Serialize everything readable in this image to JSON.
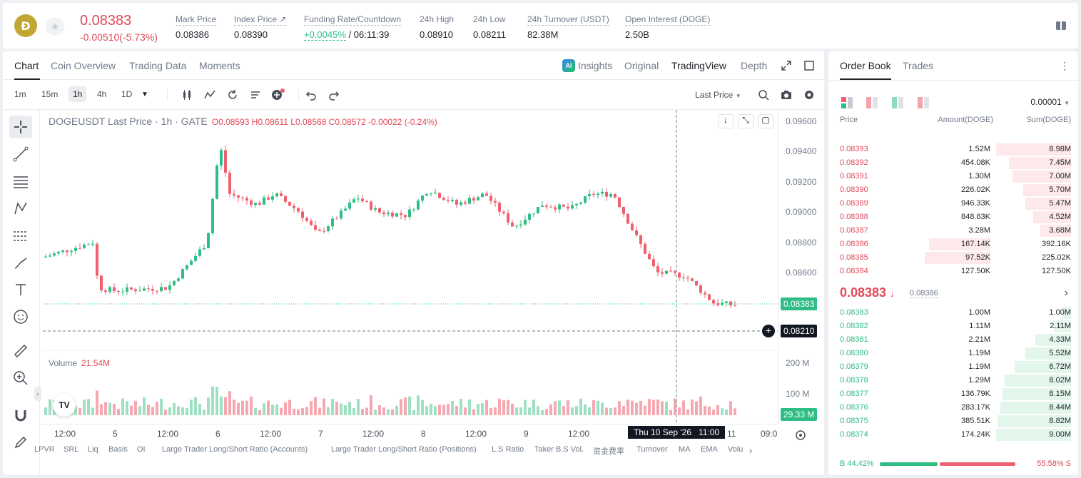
{
  "header": {
    "coin_glyph": "Ð",
    "last_price": "0.08383",
    "change": "-0.00510(-5.73%)",
    "stats": [
      {
        "label": "Mark Price",
        "value": "0.08386"
      },
      {
        "label": "Index Price ↗",
        "value": "0.08390"
      },
      {
        "label": "Funding Rate/Countdown",
        "value": "+0.0045%",
        "value2": "/ 06:11:39"
      },
      {
        "label": "24h High",
        "value": "0.08910"
      },
      {
        "label": "24h Low",
        "value": "0.08211"
      },
      {
        "label": "24h Turnover (USDT)",
        "value": "82.38M"
      },
      {
        "label": "Open Interest (DOGE)",
        "value": "2.50B"
      }
    ]
  },
  "chart_tabs": [
    "Chart",
    "Coin Overview",
    "Trading Data",
    "Moments"
  ],
  "view_tabs": {
    "insights": "Insights",
    "original": "Original",
    "tradingview": "TradingView",
    "depth": "Depth"
  },
  "timeframes": [
    "1m",
    "15m",
    "1h",
    "4h",
    "1D"
  ],
  "active_timeframe": "1h",
  "price_source": "Last Price",
  "symbol_line": {
    "title": "DOGEUSDT Last Price · 1h · GATE",
    "ohlc": "O0.08593 H0.08611 L0.08568 C0.08572 -0.00022 (-0.24%)"
  },
  "volume_line": {
    "label": "Volume",
    "value": "21.54M"
  },
  "y_axis": [
    "0.09600",
    "0.09400",
    "0.09200",
    "0.09000",
    "0.08800",
    "0.08600"
  ],
  "current_price_badge": "0.08383",
  "crosshair_price_badge": "0.08210",
  "volume_axis": [
    "200 M",
    "100 M"
  ],
  "volume_badge": "29.33 M",
  "x_axis": [
    "12:00",
    "5",
    "12:00",
    "6",
    "12:00",
    "7",
    "12:00",
    "8",
    "12:00",
    "9",
    "12:00",
    "11",
    "09:0"
  ],
  "crosshair_date": "Thu 10 Sep '26",
  "crosshair_time": "11:00",
  "tv_logo": "TV",
  "indicators": [
    "LPVR",
    "SRL",
    "Liq",
    "Basis",
    "OI",
    "Large Trader Long/Short Ratio (Accounts)",
    "Large Trader Long/Short Ratio (Positions)",
    "L.S Ratio",
    "Taker B.S Vol.",
    "资金费率",
    "Turnover",
    "MA",
    "EMA",
    "Volu"
  ],
  "order_book": {
    "tabs": [
      "Order Book",
      "Trades"
    ],
    "precision": "0.00001",
    "headers": [
      "Price",
      "Amount(DOGE)",
      "Sum(DOGE)"
    ],
    "asks": [
      {
        "price": "0.08393",
        "amount": "1.52M",
        "sum": "8.98M",
        "depth": 1.0,
        "amt_depth": 0
      },
      {
        "price": "0.08392",
        "amount": "454.08K",
        "sum": "7.45M",
        "depth": 0.83,
        "amt_depth": 0
      },
      {
        "price": "0.08391",
        "amount": "1.30M",
        "sum": "7.00M",
        "depth": 0.78,
        "amt_depth": 0
      },
      {
        "price": "0.08390",
        "amount": "226.02K",
        "sum": "5.70M",
        "depth": 0.64,
        "amt_depth": 0
      },
      {
        "price": "0.08389",
        "amount": "946.33K",
        "sum": "5.47M",
        "depth": 0.61,
        "amt_depth": 0
      },
      {
        "price": "0.08388",
        "amount": "848.63K",
        "sum": "4.52M",
        "depth": 0.5,
        "amt_depth": 0
      },
      {
        "price": "0.08387",
        "amount": "3.28M",
        "sum": "3.68M",
        "depth": 0.41,
        "amt_depth": 0
      },
      {
        "price": "0.08386",
        "amount": "167.14K",
        "sum": "392.16K",
        "depth": 0,
        "amt_depth": 0.86
      },
      {
        "price": "0.08385",
        "amount": "97.52K",
        "sum": "225.02K",
        "depth": 0,
        "amt_depth": 0.92
      },
      {
        "price": "0.08384",
        "amount": "127.50K",
        "sum": "127.50K",
        "depth": 0,
        "amt_depth": 0
      }
    ],
    "mid_price": "0.08383",
    "mid_mark": "0.08386",
    "bids": [
      {
        "price": "0.08383",
        "amount": "1.00M",
        "sum": "1.00M",
        "depth": 0.11
      },
      {
        "price": "0.08382",
        "amount": "1.11M",
        "sum": "2.11M",
        "depth": 0.23
      },
      {
        "price": "0.08381",
        "amount": "2.21M",
        "sum": "4.33M",
        "depth": 0.48
      },
      {
        "price": "0.08380",
        "amount": "1.19M",
        "sum": "5.52M",
        "depth": 0.61
      },
      {
        "price": "0.08379",
        "amount": "1.19M",
        "sum": "6.72M",
        "depth": 0.75
      },
      {
        "price": "0.08378",
        "amount": "1.29M",
        "sum": "8.02M",
        "depth": 0.89
      },
      {
        "price": "0.08377",
        "amount": "136.79K",
        "sum": "8.15M",
        "depth": 0.91
      },
      {
        "price": "0.08376",
        "amount": "283.17K",
        "sum": "8.44M",
        "depth": 0.94
      },
      {
        "price": "0.08375",
        "amount": "385.51K",
        "sum": "8.82M",
        "depth": 0.98
      },
      {
        "price": "0.08374",
        "amount": "174.24K",
        "sum": "9.00M",
        "depth": 1.0
      }
    ],
    "buy_ratio": "B 44.42%",
    "sell_ratio": "55.58% S",
    "buy_fraction": 0.4442
  },
  "colors": {
    "up": "#2ebd85",
    "down": "#f0616f",
    "accent": "#e04a59"
  },
  "icons": [
    "dogecoin-logo",
    "star-icon",
    "external-link-icon",
    "book-icon",
    "fullscreen-icon",
    "window-icon",
    "more-icon",
    "crosshair-icon",
    "line-icon",
    "fib-icon",
    "pattern-icon",
    "measure-icon",
    "brush-icon",
    "text-icon",
    "emoji-icon",
    "ruler-icon",
    "zoom-icon",
    "magnet-icon",
    "pencil-icon",
    "search-icon",
    "camera-icon",
    "settings-icon",
    "undo-icon",
    "redo-icon",
    "candles-icon",
    "indicators-icon",
    "replay-icon",
    "list-icon",
    "add-alert-icon"
  ]
}
